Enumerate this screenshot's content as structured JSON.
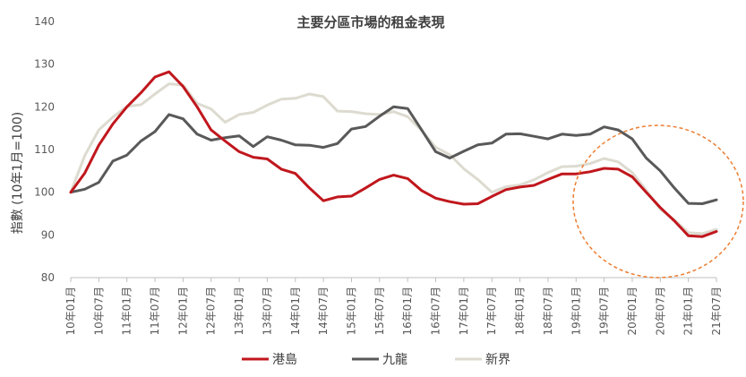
{
  "chart_data": {
    "type": "line",
    "title": "主要分區市場的租金表現",
    "xlabel": "",
    "ylabel": "指數 (10年1月=100)",
    "ylim": [
      80,
      140
    ],
    "yticks": [
      "80",
      "90",
      "100",
      "110",
      "120",
      "130",
      "140"
    ],
    "grid": false,
    "legend_position": "bottom",
    "xtick_labels": [
      "10年01月",
      "10年07月",
      "11年01月",
      "11年07月",
      "12年01月",
      "12年07月",
      "13年01月",
      "13年07月",
      "14年01月",
      "14年07月",
      "15年01月",
      "15年07月",
      "16年01月",
      "16年07月",
      "17年01月",
      "17年07月",
      "18年01月",
      "18年07月",
      "19年01月",
      "19年07月",
      "20年01月",
      "20年07月",
      "21年01月",
      "21年07月"
    ],
    "points_per_tick": 2,
    "series": [
      {
        "name": "港島",
        "color": "#c0171d",
        "values": [
          100.0,
          104.5,
          111.0,
          116.0,
          120.0,
          123.3,
          127.0,
          128.2,
          124.8,
          120.0,
          114.6,
          112.0,
          109.5,
          108.2,
          107.8,
          105.4,
          104.4,
          101.0,
          98.0,
          98.9,
          99.1,
          101.0,
          103.0,
          104.0,
          103.2,
          100.4,
          98.6,
          97.8,
          97.2,
          97.3,
          99.0,
          100.6,
          101.2,
          101.6,
          103.0,
          104.3,
          104.3,
          104.8,
          105.6,
          105.4,
          103.6,
          100.0,
          96.4,
          93.3,
          89.8,
          89.6,
          90.8
        ]
      },
      {
        "name": "九龍",
        "color": "#595959",
        "values": [
          100.0,
          100.7,
          102.3,
          107.3,
          108.7,
          112.0,
          114.2,
          118.2,
          117.2,
          113.6,
          112.2,
          112.8,
          113.2,
          110.7,
          113.0,
          112.2,
          111.1,
          111.0,
          110.5,
          111.4,
          114.8,
          115.4,
          117.8,
          120.0,
          119.6,
          114.6,
          109.5,
          108.0,
          109.6,
          111.1,
          111.5,
          113.6,
          113.7,
          113.1,
          112.5,
          113.6,
          113.3,
          113.6,
          115.3,
          114.6,
          112.5,
          108.0,
          105.0,
          101.0,
          97.4,
          97.3,
          98.2
        ]
      },
      {
        "name": "新界",
        "color": "#dddbd0",
        "values": [
          100.0,
          108.6,
          114.6,
          117.6,
          120.1,
          120.5,
          123.0,
          125.4,
          125.1,
          120.8,
          119.5,
          116.4,
          118.2,
          118.7,
          120.4,
          121.8,
          122.0,
          123.0,
          122.4,
          119.0,
          118.9,
          118.4,
          118.2,
          118.9,
          117.7,
          114.5,
          110.5,
          108.8,
          105.5,
          103.0,
          100.0,
          101.3,
          101.7,
          102.9,
          104.6,
          106.0,
          106.1,
          106.7,
          107.9,
          107.1,
          104.6,
          100.5,
          96.0,
          93.5,
          90.5,
          90.3,
          91.3
        ]
      }
    ]
  }
}
